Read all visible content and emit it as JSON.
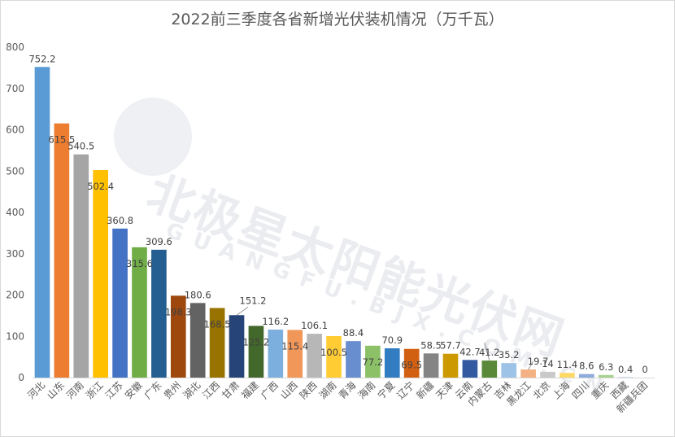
{
  "chart_data": {
    "type": "bar",
    "title": "2022前三季度各省新增光伏装机情况（万千瓦）",
    "xlabel": "",
    "ylabel": "",
    "ylim": [
      0,
      800
    ],
    "yticks": [
      0,
      100,
      200,
      300,
      400,
      500,
      600,
      700,
      800
    ],
    "grid": false,
    "legend": "none",
    "categories": [
      "河北",
      "山东",
      "河南",
      "浙江",
      "江苏",
      "安徽",
      "广东",
      "贵州",
      "湖北",
      "江西",
      "甘肃",
      "福建",
      "广西",
      "山西",
      "陕西",
      "湖南",
      "青海",
      "海南",
      "宁夏",
      "辽宁",
      "新疆",
      "天津",
      "云南",
      "内蒙古",
      "吉林",
      "黑龙江",
      "北京",
      "上海",
      "四川",
      "重庆",
      "西藏",
      "新疆兵团"
    ],
    "values": [
      752.2,
      615.5,
      540.5,
      502.4,
      360.8,
      315.6,
      309.6,
      198.3,
      180.6,
      168.5,
      151.2,
      125.2,
      116.2,
      115.4,
      106.1,
      100.5,
      88.4,
      77.2,
      70.9,
      69.5,
      58.5,
      57.7,
      42.7,
      41.2,
      35.2,
      19.7,
      14,
      11.4,
      8.6,
      6.3,
      0.4,
      0
    ],
    "data_labels": [
      "752.2",
      "615.5",
      "540.5",
      "502.4",
      "360.8",
      "315.6",
      "309.6",
      "198.3",
      "180.6",
      "168.5",
      "151.2",
      "125.2",
      "116.2",
      "115.4",
      "106.1",
      "100.5",
      "88.4",
      "77.2",
      "70.9",
      "69.5",
      "58.5",
      "57.7",
      "42.7",
      "41.2",
      "35.2",
      "19.7",
      "14",
      "11.4",
      "8.6",
      "6.3",
      "0.4",
      "0"
    ],
    "colors": [
      "#5b9bd5",
      "#ed7d31",
      "#a5a5a5",
      "#ffc000",
      "#4472c4",
      "#70ad47",
      "#255e91",
      "#9e480e",
      "#636363",
      "#997300",
      "#264478",
      "#43682b",
      "#7cafdd",
      "#f1975a",
      "#b7b7b7",
      "#ffcd33",
      "#698ed0",
      "#8cc168",
      "#327dc2",
      "#d26012",
      "#848484",
      "#cc9a00",
      "#335aa1",
      "#5a8a39",
      "#9dc3e6",
      "#f4b183",
      "#c9c9c9",
      "#ffd966",
      "#8faadc",
      "#a9d18e",
      "#2f5597",
      "#c55a11"
    ]
  },
  "watermark": {
    "text": "北极星太阳能光伏网",
    "subtext": "GUANGFU.BJX.COM.CN"
  }
}
